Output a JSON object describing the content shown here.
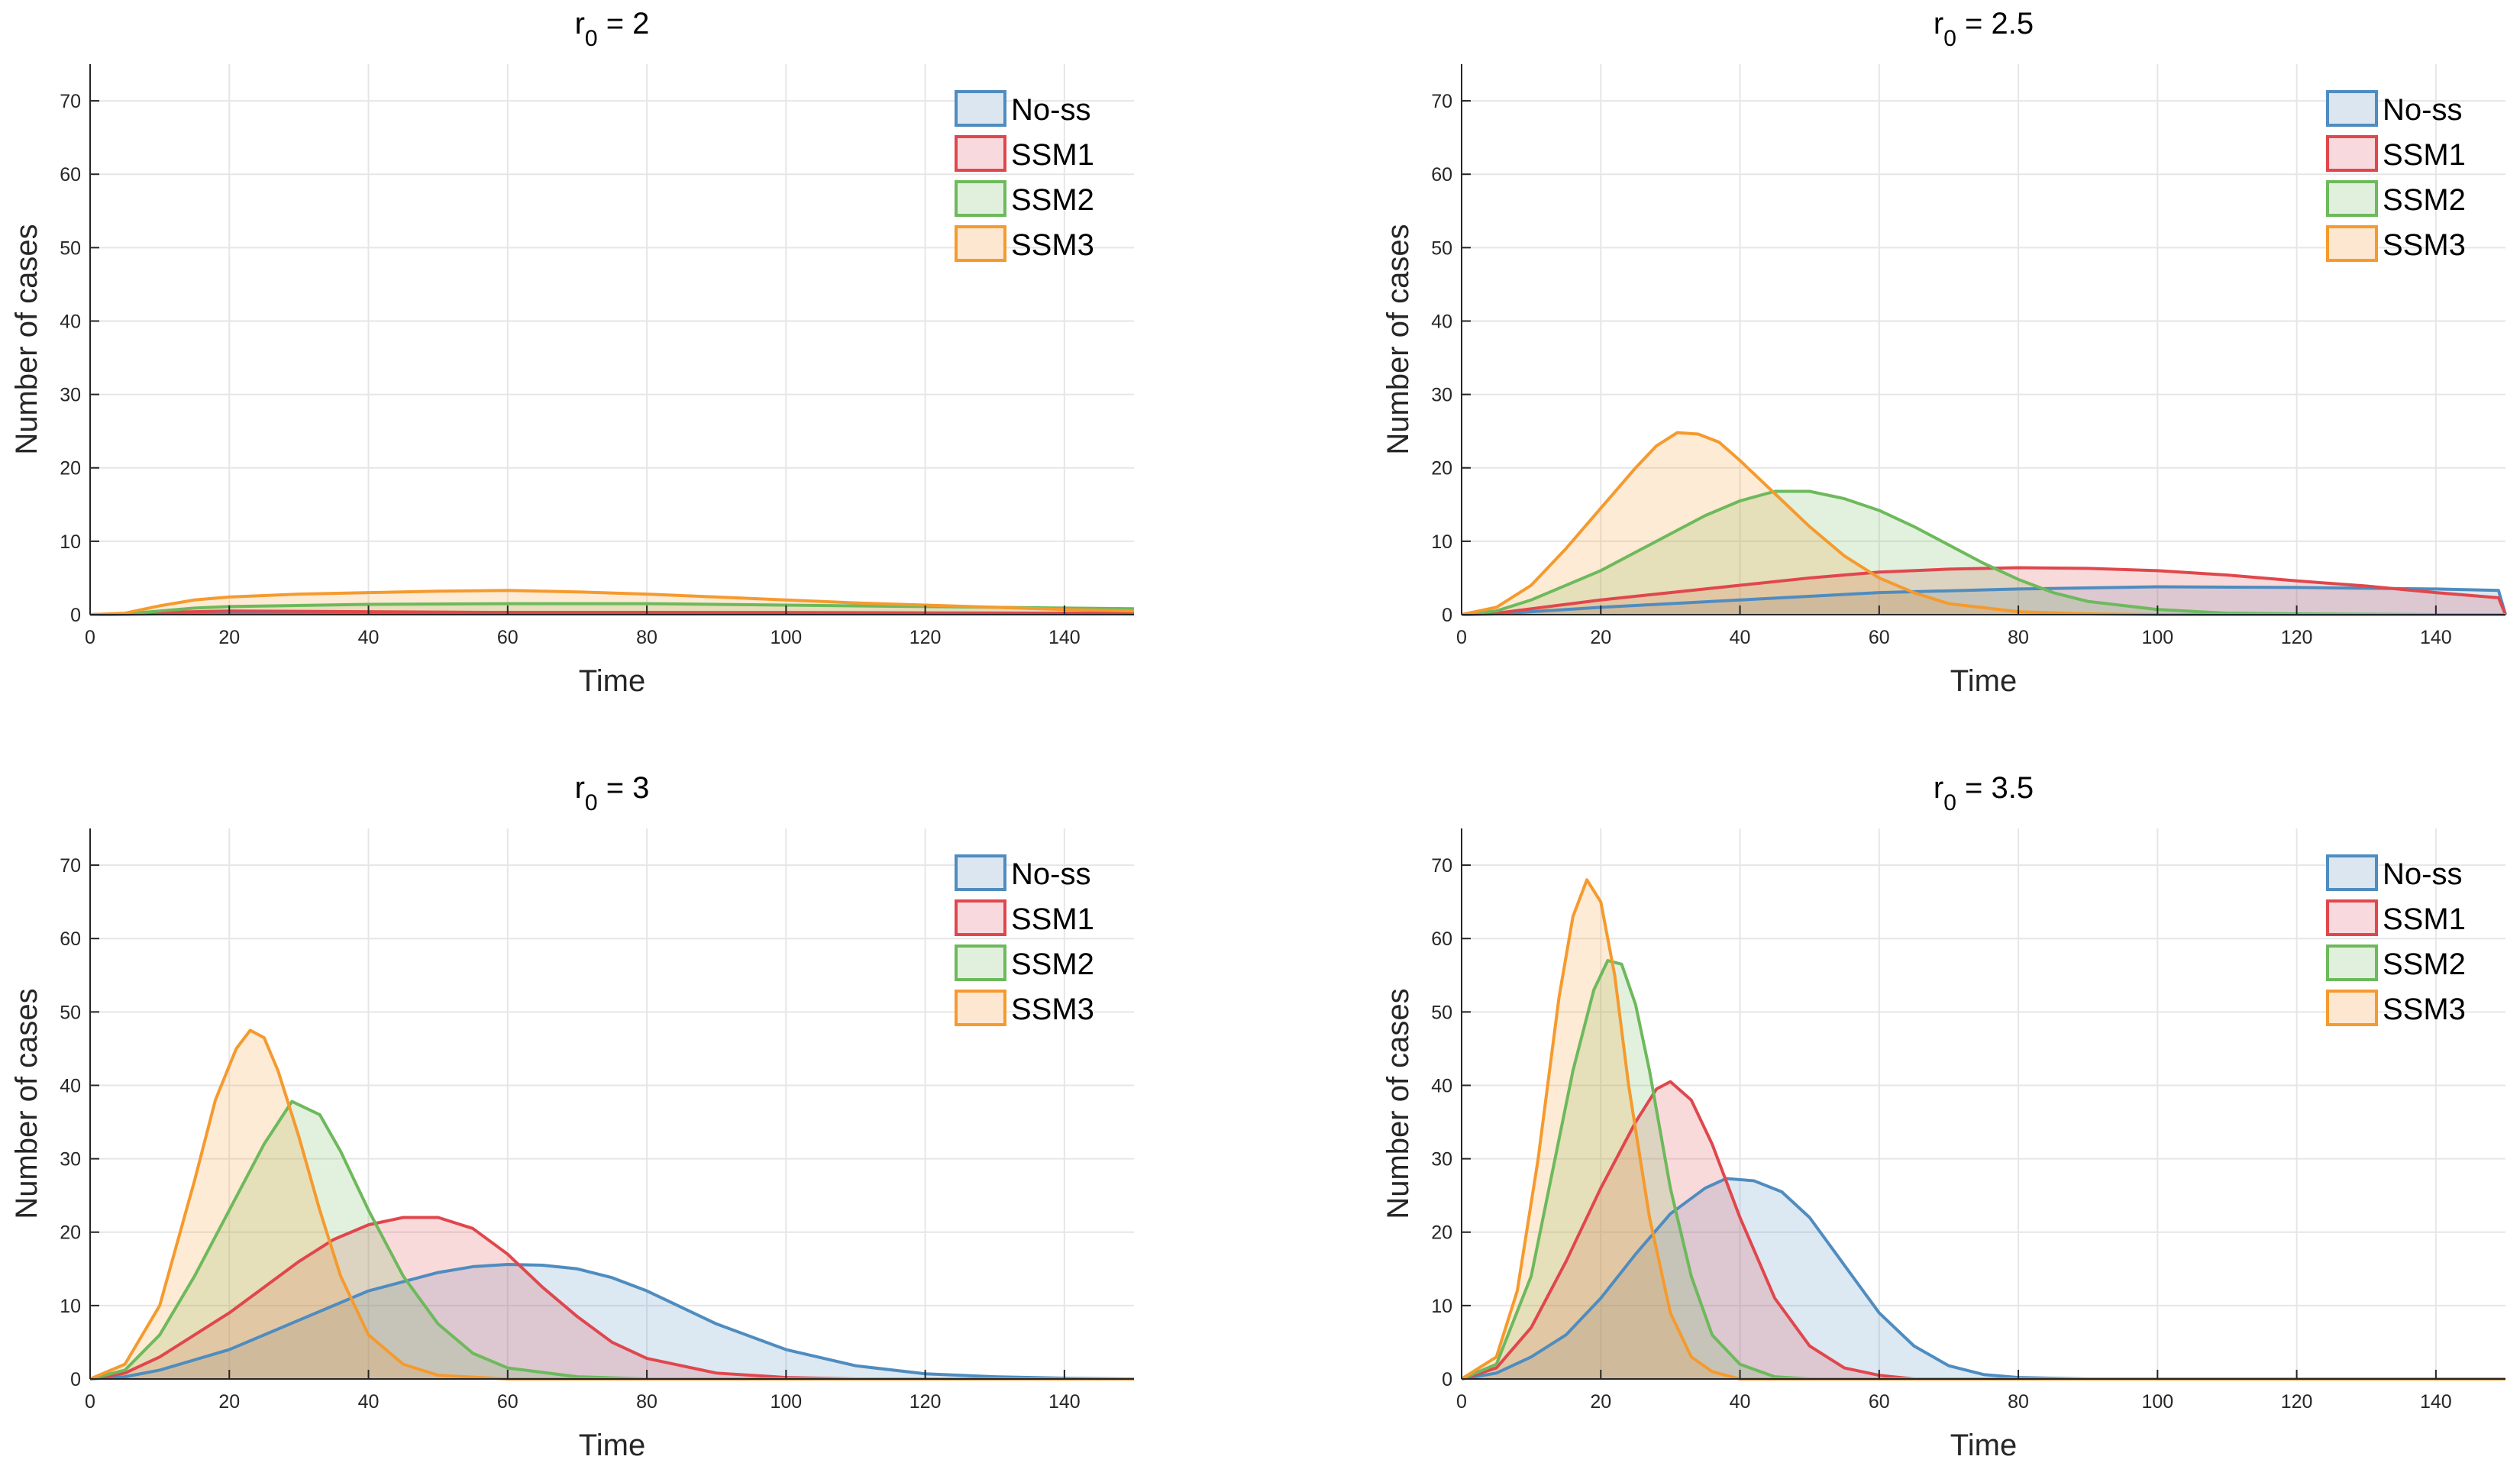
{
  "chart_data": [
    {
      "type": "area",
      "title": "r0 = 2",
      "title_main": "r",
      "title_sub": "0",
      "title_rest": " = 2",
      "xlabel": "Time",
      "ylabel": "Number of cases",
      "xlim": [
        0,
        150
      ],
      "ylim": [
        0,
        75
      ],
      "xticks": [
        0,
        20,
        40,
        60,
        80,
        100,
        120,
        140
      ],
      "yticks": [
        0,
        10,
        20,
        30,
        40,
        50,
        60,
        70
      ],
      "grid": true,
      "legend_position": "top-right",
      "series": [
        {
          "name": "No-ss",
          "color": "#4f8cbf",
          "fill": "#dbe6f1",
          "x": [
            0,
            5,
            10,
            20,
            40,
            60,
            80,
            100,
            120,
            140,
            150
          ],
          "values": [
            0,
            0.05,
            0.1,
            0.2,
            0.25,
            0.3,
            0.3,
            0.3,
            0.25,
            0.2,
            0.2
          ]
        },
        {
          "name": "SSM1",
          "color": "#e0474c",
          "fill": "#f8d9dd",
          "x": [
            0,
            5,
            10,
            20,
            40,
            60,
            80,
            100,
            120,
            140,
            150
          ],
          "values": [
            0,
            0.05,
            0.3,
            0.5,
            0.4,
            0.3,
            0.3,
            0.25,
            0.2,
            0.2,
            0.2
          ]
        },
        {
          "name": "SSM2",
          "color": "#6db95c",
          "fill": "#e0f0dc",
          "x": [
            0,
            5,
            10,
            15,
            20,
            40,
            60,
            80,
            100,
            120,
            140,
            150
          ],
          "values": [
            0,
            0.1,
            0.5,
            0.9,
            1.1,
            1.4,
            1.5,
            1.5,
            1.3,
            1.1,
            0.9,
            0.8
          ]
        },
        {
          "name": "SSM3",
          "color": "#f59a2e",
          "fill": "#fde7d1",
          "x": [
            0,
            5,
            10,
            15,
            20,
            30,
            40,
            50,
            60,
            70,
            80,
            90,
            100,
            110,
            120,
            130,
            140,
            150
          ],
          "values": [
            0,
            0.2,
            1.2,
            2.0,
            2.4,
            2.8,
            3.0,
            3.2,
            3.3,
            3.1,
            2.8,
            2.4,
            2.0,
            1.6,
            1.3,
            1.0,
            0.7,
            0.5
          ]
        }
      ]
    },
    {
      "type": "area",
      "title": "r0 = 2.5",
      "title_main": "r",
      "title_sub": "0",
      "title_rest": " = 2.5",
      "xlabel": "Time",
      "ylabel": "Number of cases",
      "xlim": [
        0,
        150
      ],
      "ylim": [
        0,
        75
      ],
      "xticks": [
        0,
        20,
        40,
        60,
        80,
        100,
        120,
        140
      ],
      "yticks": [
        0,
        10,
        20,
        30,
        40,
        50,
        60,
        70
      ],
      "grid": true,
      "legend_position": "top-right",
      "series": [
        {
          "name": "No-ss",
          "color": "#4f8cbf",
          "fill": "#dbe6f1",
          "x": [
            0,
            5,
            10,
            20,
            40,
            60,
            80,
            100,
            120,
            140,
            149,
            150
          ],
          "values": [
            0,
            0.1,
            0.4,
            1.0,
            2.0,
            3.0,
            3.5,
            3.8,
            3.7,
            3.5,
            3.3,
            0
          ]
        },
        {
          "name": "SSM1",
          "color": "#e0474c",
          "fill": "#f8d9dd",
          "x": [
            0,
            5,
            10,
            20,
            30,
            40,
            50,
            60,
            70,
            80,
            90,
            100,
            110,
            120,
            130,
            140,
            149,
            150
          ],
          "values": [
            0,
            0.2,
            0.8,
            2.0,
            3.0,
            4.0,
            5.0,
            5.8,
            6.2,
            6.4,
            6.3,
            6.0,
            5.4,
            4.6,
            3.9,
            3.0,
            2.3,
            0
          ]
        },
        {
          "name": "SSM2",
          "color": "#6db95c",
          "fill": "#e0f0dc",
          "x": [
            0,
            5,
            10,
            15,
            20,
            25,
            30,
            35,
            40,
            45,
            50,
            55,
            60,
            65,
            70,
            75,
            80,
            85,
            90,
            100,
            110,
            120,
            130,
            140,
            150
          ],
          "values": [
            0,
            0.5,
            2.0,
            4.0,
            6.0,
            8.5,
            11.0,
            13.5,
            15.5,
            16.8,
            16.8,
            15.8,
            14.2,
            12.0,
            9.5,
            7.0,
            4.8,
            3.0,
            1.8,
            0.7,
            0.2,
            0.1,
            0.05,
            0,
            0
          ]
        },
        {
          "name": "SSM3",
          "color": "#f59a2e",
          "fill": "#fde7d1",
          "x": [
            0,
            5,
            10,
            15,
            20,
            25,
            28,
            31,
            34,
            37,
            40,
            45,
            50,
            55,
            60,
            65,
            70,
            80,
            90,
            100,
            120,
            150
          ],
          "values": [
            0,
            1.0,
            4.0,
            9.0,
            14.5,
            20.0,
            23.0,
            24.8,
            24.6,
            23.5,
            21.0,
            16.5,
            12.0,
            8.0,
            5.0,
            3.0,
            1.5,
            0.4,
            0.1,
            0,
            0,
            0
          ]
        }
      ]
    },
    {
      "type": "area",
      "title": "r0 = 3",
      "title_main": "r",
      "title_sub": "0",
      "title_rest": " = 3",
      "xlabel": "Time",
      "ylabel": "Number of cases",
      "xlim": [
        0,
        150
      ],
      "ylim": [
        0,
        75
      ],
      "xticks": [
        0,
        20,
        40,
        60,
        80,
        100,
        120,
        140
      ],
      "yticks": [
        0,
        10,
        20,
        30,
        40,
        50,
        60,
        70
      ],
      "grid": true,
      "legend_position": "top-right",
      "series": [
        {
          "name": "No-ss",
          "color": "#4f8cbf",
          "fill": "#dbe6f1",
          "x": [
            0,
            5,
            10,
            20,
            30,
            40,
            50,
            55,
            60,
            65,
            70,
            75,
            80,
            90,
            100,
            110,
            120,
            130,
            140,
            150
          ],
          "values": [
            0,
            0.3,
            1.2,
            4.0,
            8.0,
            12.0,
            14.5,
            15.3,
            15.6,
            15.5,
            15.0,
            13.8,
            12.0,
            7.5,
            4.0,
            1.8,
            0.7,
            0.3,
            0.1,
            0
          ]
        },
        {
          "name": "SSM1",
          "color": "#e0474c",
          "fill": "#f8d9dd",
          "x": [
            0,
            5,
            10,
            15,
            20,
            25,
            30,
            35,
            40,
            45,
            50,
            55,
            60,
            65,
            70,
            75,
            80,
            90,
            100,
            110,
            150
          ],
          "values": [
            0,
            0.8,
            3.0,
            6.0,
            9.0,
            12.5,
            16.0,
            19.0,
            21.0,
            22.0,
            22.0,
            20.5,
            17.0,
            12.5,
            8.5,
            5.0,
            2.8,
            0.8,
            0.2,
            0,
            0
          ]
        },
        {
          "name": "SSM2",
          "color": "#6db95c",
          "fill": "#e0f0dc",
          "x": [
            0,
            5,
            10,
            15,
            20,
            25,
            29,
            33,
            36,
            40,
            45,
            50,
            55,
            60,
            70,
            80,
            150
          ],
          "values": [
            0,
            1.2,
            6.0,
            14.0,
            23.0,
            32.0,
            37.8,
            36.0,
            31.0,
            23.0,
            14.0,
            7.5,
            3.5,
            1.5,
            0.3,
            0,
            0
          ]
        },
        {
          "name": "SSM3",
          "color": "#f59a2e",
          "fill": "#fde7d1",
          "x": [
            0,
            5,
            10,
            15,
            18,
            21,
            23,
            25,
            27,
            30,
            33,
            36,
            40,
            45,
            50,
            60,
            150
          ],
          "values": [
            0,
            2.0,
            10.0,
            27.0,
            38.0,
            45.0,
            47.5,
            46.5,
            42.0,
            33.0,
            23.0,
            14.0,
            6.0,
            2.0,
            0.5,
            0,
            0
          ]
        }
      ]
    },
    {
      "type": "area",
      "title": "r0 = 3.5",
      "title_main": "r",
      "title_sub": "0",
      "title_rest": " = 3.5",
      "xlabel": "Time",
      "ylabel": "Number of cases",
      "xlim": [
        0,
        150
      ],
      "ylim": [
        0,
        75
      ],
      "xticks": [
        0,
        20,
        40,
        60,
        80,
        100,
        120,
        140
      ],
      "yticks": [
        0,
        10,
        20,
        30,
        40,
        50,
        60,
        70
      ],
      "grid": true,
      "legend_position": "top-right",
      "series": [
        {
          "name": "No-ss",
          "color": "#4f8cbf",
          "fill": "#dbe6f1",
          "x": [
            0,
            5,
            10,
            15,
            20,
            25,
            30,
            35,
            38,
            42,
            46,
            50,
            55,
            60,
            65,
            70,
            75,
            80,
            90,
            150
          ],
          "values": [
            0,
            0.8,
            3.0,
            6.0,
            11.0,
            17.0,
            22.5,
            26.0,
            27.3,
            27.0,
            25.5,
            22.0,
            15.5,
            9.0,
            4.5,
            1.8,
            0.6,
            0.2,
            0,
            0
          ]
        },
        {
          "name": "SSM1",
          "color": "#e0474c",
          "fill": "#f8d9dd",
          "x": [
            0,
            5,
            10,
            15,
            20,
            25,
            28,
            30,
            33,
            36,
            40,
            45,
            50,
            55,
            60,
            65,
            150
          ],
          "values": [
            0,
            1.5,
            7.0,
            16.0,
            26.0,
            35.0,
            39.5,
            40.5,
            38.0,
            32.0,
            22.0,
            11.0,
            4.5,
            1.5,
            0.5,
            0,
            0
          ]
        },
        {
          "name": "SSM2",
          "color": "#6db95c",
          "fill": "#e0f0dc",
          "x": [
            0,
            5,
            10,
            13,
            16,
            19,
            21,
            23,
            25,
            27,
            30,
            33,
            36,
            40,
            45,
            50,
            150
          ],
          "values": [
            0,
            2.0,
            14.0,
            28.0,
            42.0,
            53.0,
            57.0,
            56.5,
            51.0,
            42.0,
            26.0,
            14.0,
            6.0,
            2.0,
            0.3,
            0,
            0
          ]
        },
        {
          "name": "SSM3",
          "color": "#f59a2e",
          "fill": "#fde7d1",
          "x": [
            0,
            5,
            8,
            11,
            14,
            16,
            18,
            20,
            22,
            24,
            27,
            30,
            33,
            36,
            40,
            150
          ],
          "values": [
            0,
            3.0,
            12.0,
            30.0,
            52.0,
            63.0,
            68.0,
            65.0,
            55.0,
            40.0,
            22.0,
            9.0,
            3.0,
            1.0,
            0,
            0
          ]
        }
      ]
    }
  ]
}
